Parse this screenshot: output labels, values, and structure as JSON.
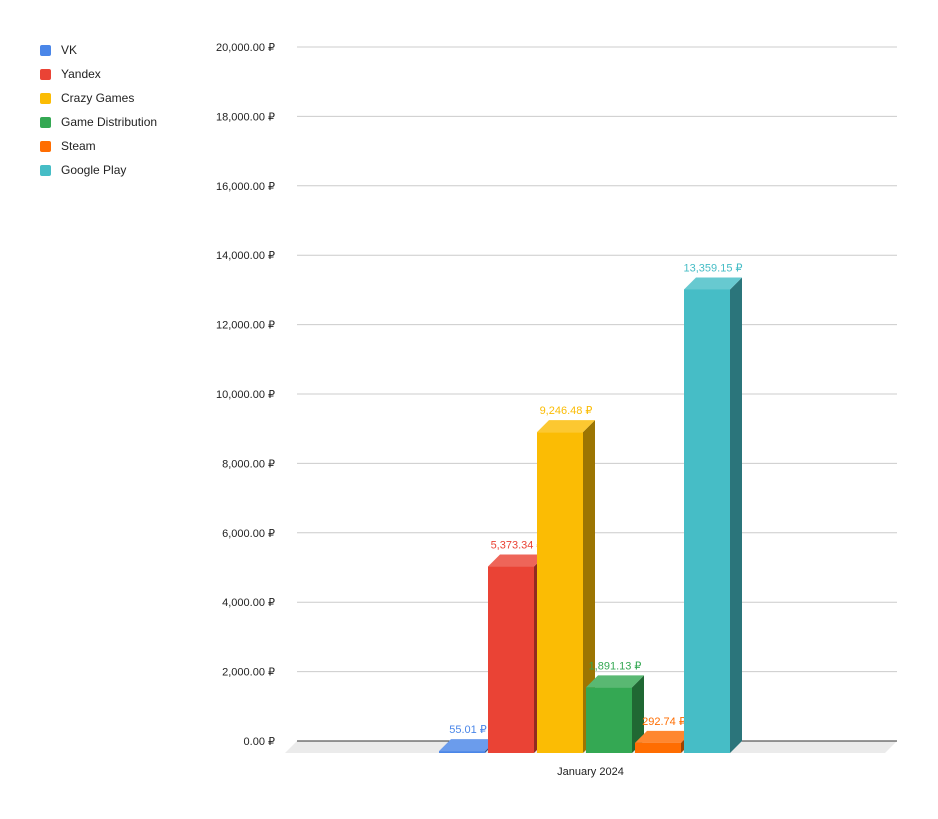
{
  "chart_data": {
    "type": "bar",
    "style": "3d",
    "categories": [
      "January 2024"
    ],
    "series": [
      {
        "name": "VK",
        "values": [
          55.01
        ],
        "label": "55.01 ₽",
        "color": "#4a86e8"
      },
      {
        "name": "Yandex",
        "values": [
          5373.34
        ],
        "label": "5,373.34 ₽",
        "color": "#ea4335"
      },
      {
        "name": "Crazy Games",
        "values": [
          9246.48
        ],
        "label": "9,246.48 ₽",
        "color": "#fbbc04"
      },
      {
        "name": "Game Distribution",
        "values": [
          1891.13
        ],
        "label": "1,891.13 ₽",
        "color": "#34a853"
      },
      {
        "name": "Steam",
        "values": [
          292.74
        ],
        "label": "292.74 ₽",
        "color": "#ff6d01"
      },
      {
        "name": "Google Play",
        "values": [
          13359.15
        ],
        "label": "13,359.15 ₽",
        "color": "#46bdc6"
      }
    ],
    "ylim": [
      0,
      20000
    ],
    "yticks": [
      {
        "value": 0,
        "label": "0.00 ₽"
      },
      {
        "value": 2000,
        "label": "2,000.00 ₽"
      },
      {
        "value": 4000,
        "label": "4,000.00 ₽"
      },
      {
        "value": 6000,
        "label": "6,000.00 ₽"
      },
      {
        "value": 8000,
        "label": "8,000.00 ₽"
      },
      {
        "value": 10000,
        "label": "10,000.00 ₽"
      },
      {
        "value": 12000,
        "label": "12,000.00 ₽"
      },
      {
        "value": 14000,
        "label": "14,000.00 ₽"
      },
      {
        "value": 16000,
        "label": "16,000.00 ₽"
      },
      {
        "value": 18000,
        "label": "18,000.00 ₽"
      },
      {
        "value": 20000,
        "label": "20,000.00 ₽"
      }
    ],
    "grid": true,
    "legend_position": "top-left",
    "title": "",
    "xlabel": "",
    "ylabel": ""
  }
}
